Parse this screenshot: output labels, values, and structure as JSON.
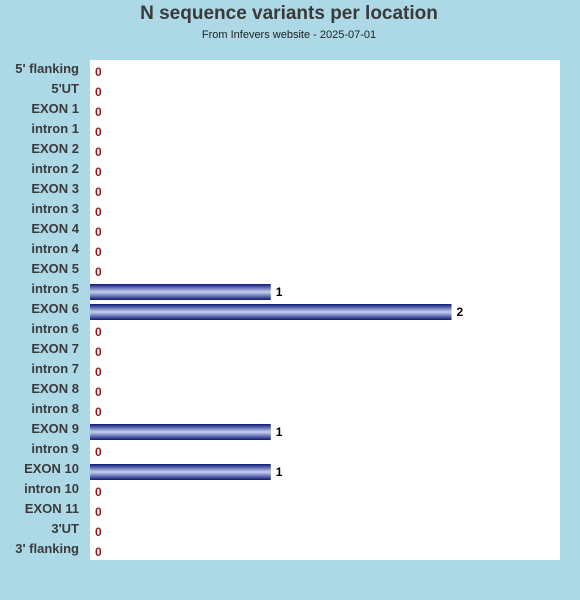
{
  "colors": {
    "background": "#add8e6",
    "plot_background": "#ffffff",
    "bar_dark": "#0a1a7a",
    "bar_light": "#c8d0f0",
    "zero_value": "#8b1a1a",
    "positive_value": "#000000"
  },
  "chart_data": {
    "type": "bar",
    "orientation": "horizontal",
    "title": "N sequence variants per location",
    "subtitle": "From Infevers website - 2025-07-01",
    "xlabel": "",
    "ylabel": "",
    "xlim": [
      0,
      2.6
    ],
    "grid": false,
    "legend": "none",
    "categories": [
      "5' flanking",
      "5'UT",
      "EXON 1",
      "intron 1",
      "EXON 2",
      "intron 2",
      "EXON 3",
      "intron 3",
      "EXON 4",
      "intron 4",
      "EXON 5",
      "intron 5",
      "EXON 6",
      "intron 6",
      "EXON 7",
      "intron 7",
      "EXON 8",
      "intron 8",
      "EXON 9",
      "intron 9",
      "EXON 10",
      "intron 10",
      "EXON 11",
      "3'UT",
      "3' flanking"
    ],
    "values": [
      0,
      0,
      0,
      0,
      0,
      0,
      0,
      0,
      0,
      0,
      0,
      1,
      2,
      0,
      0,
      0,
      0,
      0,
      1,
      0,
      1,
      0,
      0,
      0,
      0
    ]
  }
}
